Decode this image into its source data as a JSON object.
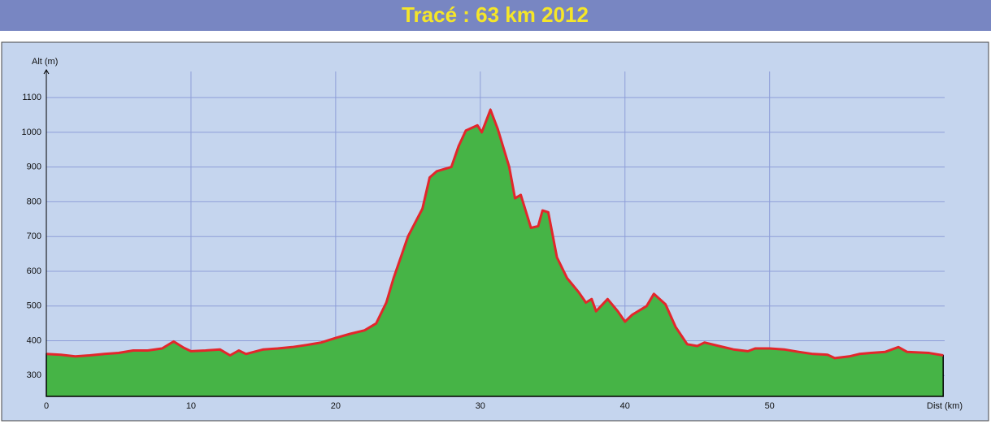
{
  "chart_data": {
    "type": "area",
    "title": "Tracé : 63 km 2012",
    "y_label": "Alt (m)",
    "x_label": "Dist (km)",
    "x": [
      0,
      1,
      2,
      3,
      4,
      5,
      6,
      7,
      8,
      8.8,
      9.5,
      10,
      11,
      12,
      12.7,
      13.3,
      13.8,
      15,
      16,
      17,
      18,
      19,
      20,
      21,
      22,
      22.8,
      23.5,
      24,
      24.5,
      25,
      25.5,
      26,
      26.5,
      27,
      28,
      28.5,
      29,
      29.8,
      30.1,
      30.7,
      31.2,
      32,
      32.4,
      32.8,
      33.5,
      34,
      34.3,
      34.7,
      35.3,
      36,
      36.8,
      37.3,
      37.7,
      38,
      38.8,
      39.5,
      40,
      40.5,
      41.5,
      42,
      42.8,
      43.5,
      44.3,
      45,
      45.5,
      46.5,
      47.5,
      48.5,
      49,
      50,
      51,
      52,
      53,
      54,
      54.5,
      55.5,
      56.2,
      57,
      58,
      58.9,
      59.5,
      61,
      62
    ],
    "series": [
      {
        "name": "Alt",
        "color": "#e3262b",
        "fill": "#46b446",
        "values": [
          362,
          360,
          355,
          358,
          362,
          365,
          372,
          372,
          378,
          398,
          380,
          370,
          372,
          375,
          358,
          372,
          362,
          375,
          378,
          382,
          388,
          395,
          408,
          420,
          430,
          450,
          510,
          580,
          640,
          700,
          740,
          780,
          870,
          888,
          900,
          960,
          1005,
          1020,
          1000,
          1065,
          1010,
          900,
          810,
          820,
          725,
          730,
          775,
          770,
          640,
          580,
          540,
          510,
          520,
          485,
          520,
          485,
          455,
          475,
          500,
          535,
          505,
          440,
          390,
          385,
          395,
          385,
          375,
          370,
          378,
          378,
          375,
          368,
          362,
          360,
          350,
          355,
          362,
          365,
          368,
          382,
          368,
          365,
          358
        ]
      }
    ],
    "xlim": [
      0,
      62.1
    ],
    "ylim": [
      240,
      1175
    ],
    "xticks": [
      0,
      10,
      20,
      30,
      40,
      50
    ],
    "yticks": [
      300,
      400,
      500,
      600,
      700,
      800,
      900,
      1000,
      1100
    ],
    "grid": true
  }
}
